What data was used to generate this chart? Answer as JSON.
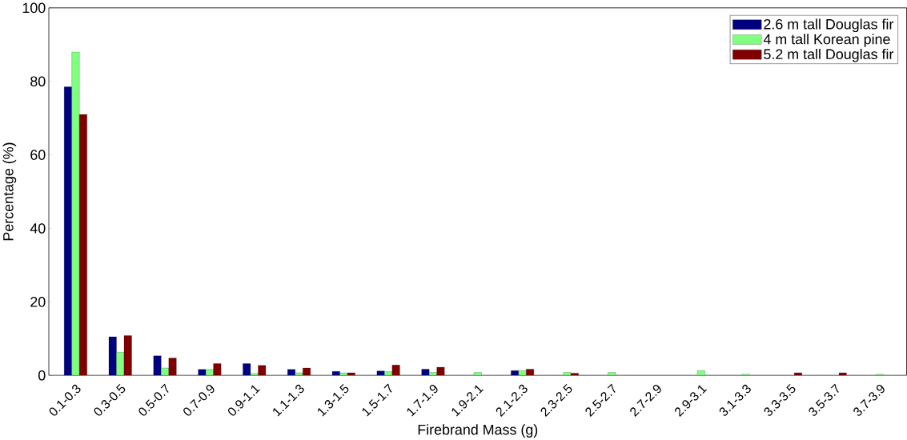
{
  "chart_data": {
    "type": "bar",
    "xlabel": "Firebrand Mass (g)",
    "ylabel": "Percentage (%)",
    "categories": [
      "0.1-0.3",
      "0.3-0.5",
      "0.5-0.7",
      "0.7-0.9",
      "0.9-1.1",
      "1.1-1.3",
      "1.3-1.5",
      "1.5-1.7",
      "1.7-1.9",
      "1.9-2.1",
      "2.1-2.3",
      "2.3-2.5",
      "2.5-2.7",
      "2.7-2.9",
      "2.9-3.1",
      "3.1-3.3",
      "3.3-3.5",
      "3.5-3.7",
      "3.7-3.9"
    ],
    "series": [
      {
        "name": "2.6 m tall Douglas fir",
        "color": "#000080",
        "values": [
          78.5,
          10.5,
          5.3,
          1.6,
          3.2,
          1.6,
          1.1,
          1.2,
          1.7,
          0,
          1.3,
          0,
          0,
          0,
          0,
          0,
          0,
          0,
          0
        ]
      },
      {
        "name": "4 m tall Korean pine",
        "color": "#80ff80",
        "values": [
          88,
          6.3,
          2,
          1.6,
          0.5,
          0.7,
          0.7,
          1,
          0.8,
          0.8,
          1.3,
          0.8,
          0.8,
          0,
          1.3,
          0.3,
          0,
          0,
          0.3
        ]
      },
      {
        "name": "5.2 m tall Douglas fir",
        "color": "#800000",
        "values": [
          71,
          10.8,
          4.7,
          3.2,
          2.7,
          2,
          0.7,
          2.8,
          2.2,
          0,
          1.7,
          0.6,
          0,
          0,
          0,
          0,
          0.7,
          0.7,
          0
        ]
      }
    ],
    "ylim": [
      0,
      100
    ],
    "yticks": [
      0,
      20,
      40,
      60,
      80,
      100
    ],
    "grid": false,
    "legend": "top right"
  }
}
